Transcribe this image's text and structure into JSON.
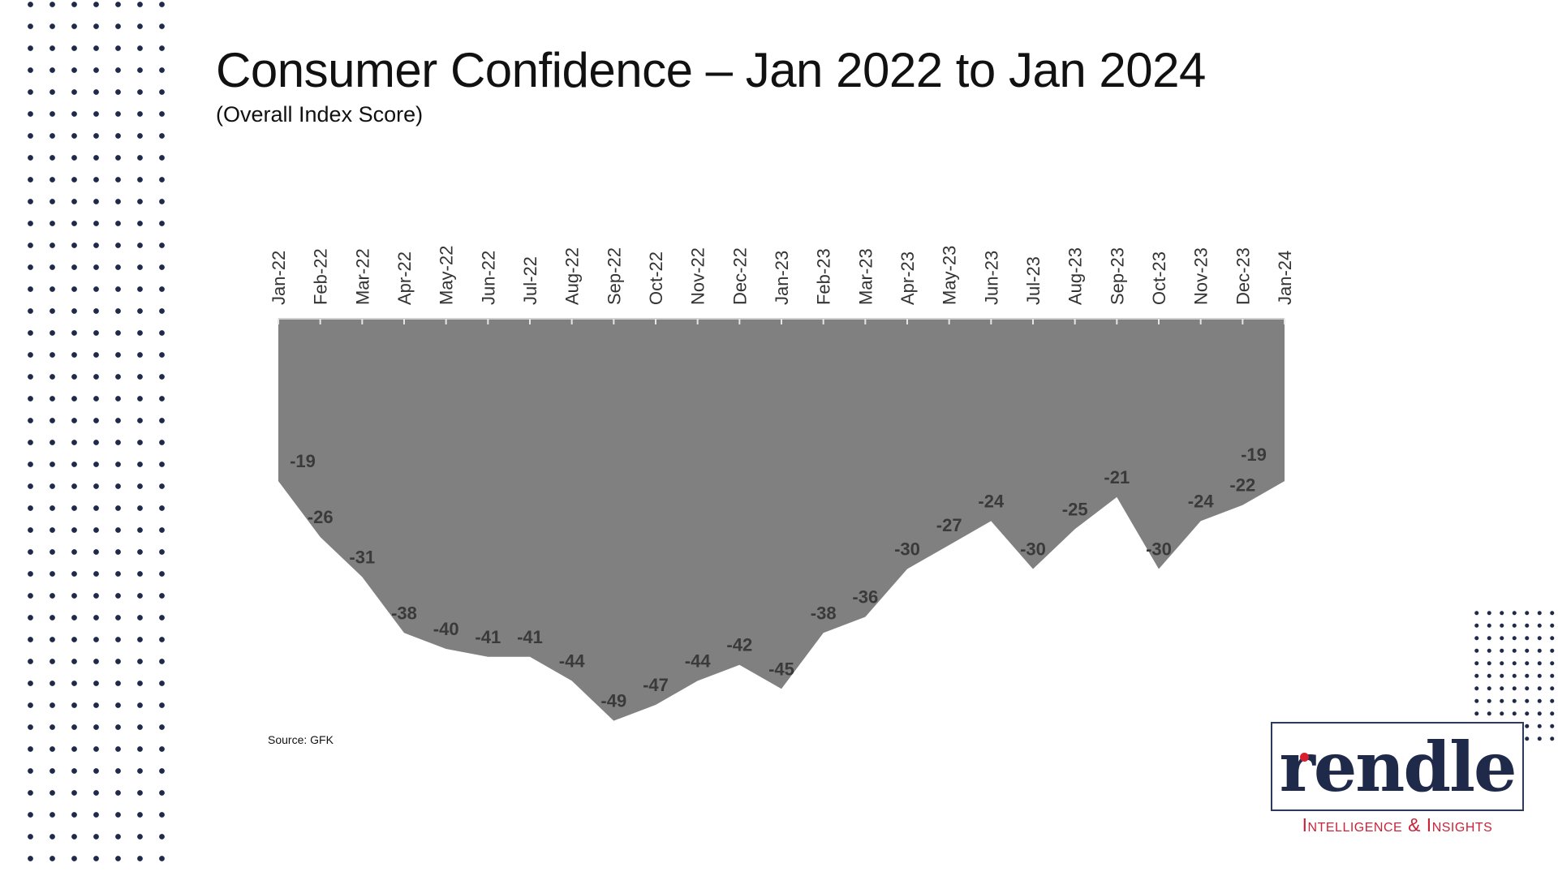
{
  "header": {
    "title": "Consumer Confidence – Jan 2022 to Jan 2024",
    "subtitle": "(Overall Index Score)"
  },
  "footer": {
    "source": "Source: GFK"
  },
  "logo": {
    "wordmark": "rendle",
    "tagline": "Intelligence & Insights",
    "accent_color": "#d71f2d",
    "brand_color": "#1f2a4a"
  },
  "colors": {
    "area_fill": "#808080",
    "label": "#3a3a3a",
    "axis": "#cfcfcf"
  },
  "chart_data": {
    "type": "area",
    "title": "Consumer Confidence – Jan 2022 to Jan 2024",
    "subtitle": "(Overall Index Score)",
    "x_axis_position": "top",
    "y_axis_reversed": true,
    "ylim": [
      0,
      -50
    ],
    "grid": false,
    "legend": "none",
    "categories": [
      "Jan-22",
      "Feb-22",
      "Mar-22",
      "Apr-22",
      "May-22",
      "Jun-22",
      "Jul-22",
      "Aug-22",
      "Sep-22",
      "Oct-22",
      "Nov-22",
      "Dec-22",
      "Jan-23",
      "Feb-23",
      "Mar-23",
      "Apr-23",
      "May-23",
      "Jun-23",
      "Jul-23",
      "Aug-23",
      "Sep-23",
      "Oct-23",
      "Nov-23",
      "Dec-23",
      "Jan-24"
    ],
    "values": [
      -19,
      -26,
      -31,
      -38,
      -40,
      -41,
      -41,
      -44,
      -49,
      -47,
      -44,
      -42,
      -45,
      -38,
      -36,
      -30,
      -27,
      -24,
      -30,
      -25,
      -21,
      -30,
      -24,
      -22,
      -19
    ]
  }
}
